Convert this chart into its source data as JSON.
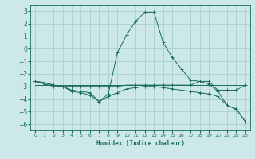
{
  "xlabel": "Humidex (Indice chaleur)",
  "background_color": "#cce8e8",
  "grid_color": "#aacfcf",
  "line_color": "#1a6b60",
  "spine_color": "#1a6b60",
  "xlim": [
    -0.5,
    23.5
  ],
  "ylim": [
    -6.5,
    3.5
  ],
  "yticks": [
    -6,
    -5,
    -4,
    -3,
    -2,
    -1,
    0,
    1,
    2,
    3
  ],
  "xticks": [
    0,
    1,
    2,
    3,
    4,
    5,
    6,
    7,
    8,
    9,
    10,
    11,
    12,
    13,
    14,
    15,
    16,
    17,
    18,
    19,
    20,
    21,
    22,
    23
  ],
  "series": [
    {
      "x": [
        0,
        1,
        2,
        3,
        4,
        5,
        6,
        7,
        8,
        9,
        10,
        11,
        12,
        13,
        14,
        15,
        16,
        17,
        18,
        19,
        20,
        21,
        22,
        23
      ],
      "y": [
        -2.6,
        -2.7,
        -2.9,
        -3.0,
        -3.3,
        -3.4,
        -3.5,
        -4.2,
        -3.6,
        -0.3,
        1.1,
        2.2,
        2.9,
        2.9,
        0.5,
        -0.7,
        -1.6,
        -2.5,
        -2.6,
        -2.8,
        -3.4,
        -4.5,
        -4.8,
        -5.8
      ]
    },
    {
      "x": [
        0,
        1,
        2,
        3,
        4,
        5,
        6,
        7,
        8,
        9,
        10,
        11,
        12,
        13,
        14,
        15,
        16,
        17,
        18,
        19,
        20,
        21,
        22,
        23
      ],
      "y": [
        -2.6,
        -2.8,
        -3.0,
        -3.0,
        -3.4,
        -3.5,
        -3.7,
        -4.2,
        -3.8,
        -3.5,
        -3.2,
        -3.1,
        -3.0,
        -3.0,
        -3.1,
        -3.2,
        -3.3,
        -3.4,
        -3.5,
        -3.6,
        -3.8,
        -4.5,
        -4.8,
        -5.8
      ]
    },
    {
      "x": [
        0,
        1,
        2,
        3,
        4,
        5,
        6,
        7,
        8,
        9,
        10,
        11,
        12,
        13,
        14,
        15,
        16,
        17,
        18,
        19,
        20,
        21,
        22,
        23
      ],
      "y": [
        -2.6,
        -2.7,
        -2.9,
        -3.0,
        -3.0,
        -3.0,
        -3.0,
        -3.0,
        -3.0,
        -3.0,
        -2.9,
        -2.9,
        -2.9,
        -2.9,
        -2.9,
        -2.9,
        -2.9,
        -2.9,
        -2.6,
        -2.6,
        -3.3,
        -3.3,
        -3.3,
        -2.9
      ]
    },
    {
      "x": [
        0,
        14,
        23
      ],
      "y": [
        -2.9,
        -2.9,
        -2.9
      ]
    }
  ]
}
